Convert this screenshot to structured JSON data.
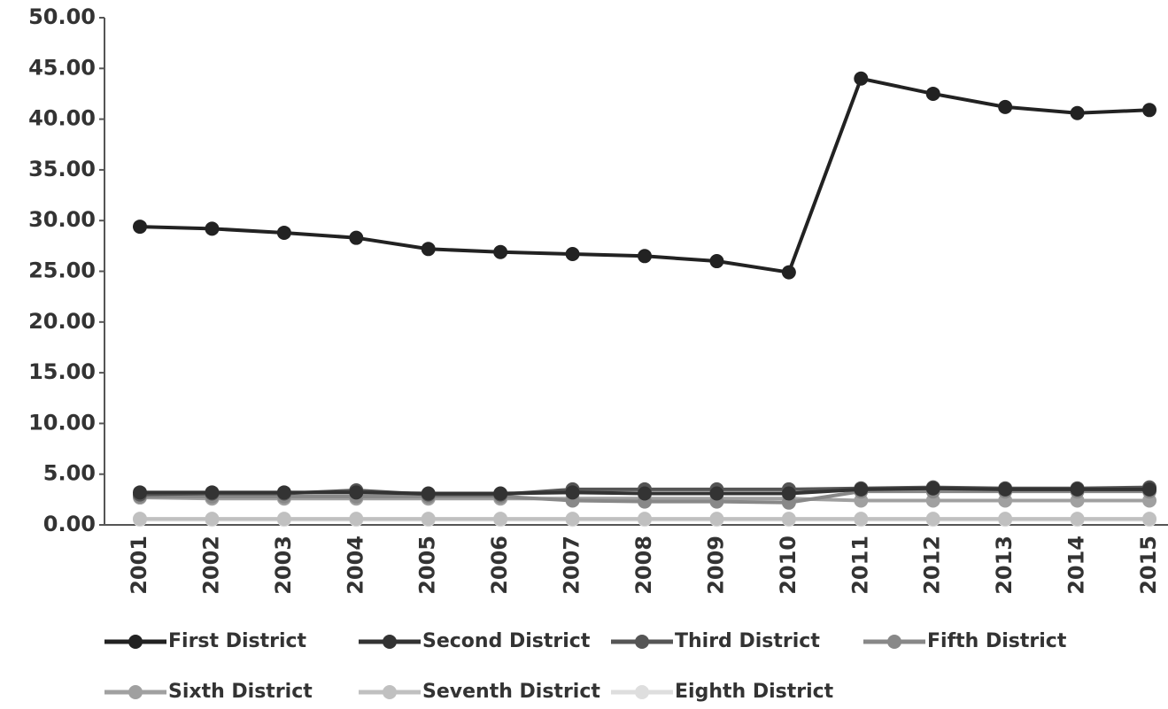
{
  "chart_data": {
    "type": "line",
    "categories": [
      "2001",
      "2002",
      "2003",
      "2004",
      "2005",
      "2006",
      "2007",
      "2008",
      "2009",
      "2010",
      "2011",
      "2012",
      "2013",
      "2014",
      "2015"
    ],
    "series": [
      {
        "name": "First District",
        "color": "#222222",
        "values": [
          29.4,
          29.2,
          28.8,
          28.3,
          27.2,
          26.9,
          26.7,
          26.5,
          26.0,
          24.9,
          44.0,
          42.5,
          41.2,
          40.6,
          40.9
        ]
      },
      {
        "name": "Second District",
        "color": "#333333",
        "values": [
          3.2,
          3.2,
          3.2,
          3.2,
          3.1,
          3.1,
          3.2,
          3.1,
          3.1,
          3.1,
          3.5,
          3.6,
          3.5,
          3.5,
          3.5
        ]
      },
      {
        "name": "Third District",
        "color": "#555555",
        "values": [
          3.0,
          3.1,
          3.1,
          3.4,
          3.0,
          3.0,
          3.5,
          3.5,
          3.5,
          3.5,
          3.6,
          3.7,
          3.6,
          3.6,
          3.7
        ]
      },
      {
        "name": "Fifth District",
        "color": "#888888",
        "values": [
          2.8,
          2.8,
          2.8,
          2.8,
          2.8,
          2.8,
          2.4,
          2.3,
          2.3,
          2.2,
          3.3,
          3.3,
          3.3,
          3.3,
          3.3
        ]
      },
      {
        "name": "Sixth District",
        "color": "#a0a0a0",
        "values": [
          2.7,
          2.6,
          2.6,
          2.6,
          2.6,
          2.6,
          2.6,
          2.6,
          2.6,
          2.6,
          2.4,
          2.4,
          2.4,
          2.4,
          2.4
        ]
      },
      {
        "name": "Seventh District",
        "color": "#c0c0c0",
        "values": [
          0.6,
          0.6,
          0.6,
          0.6,
          0.6,
          0.6,
          0.6,
          0.6,
          0.6,
          0.6,
          0.6,
          0.6,
          0.6,
          0.6,
          0.6
        ]
      },
      {
        "name": "Eighth District",
        "color": "#dedede",
        "values": [
          0.5,
          0.5,
          0.5,
          0.5,
          0.5,
          0.5,
          0.5,
          0.5,
          0.5,
          0.5,
          0.5,
          0.5,
          0.5,
          0.5,
          0.5
        ]
      }
    ],
    "ylim": [
      0,
      50
    ],
    "yticks": [
      {
        "value": 0,
        "label": "0.00"
      },
      {
        "value": 5,
        "label": "5.00"
      },
      {
        "value": 10,
        "label": "10.00"
      },
      {
        "value": 15,
        "label": "15.00"
      },
      {
        "value": 20,
        "label": "20.00"
      },
      {
        "value": 25,
        "label": "25.00"
      },
      {
        "value": 30,
        "label": "30.00"
      },
      {
        "value": 35,
        "label": "35.00"
      },
      {
        "value": 40,
        "label": "40.00"
      },
      {
        "value": 45,
        "label": "45.00"
      },
      {
        "value": 50,
        "label": "50.00"
      }
    ]
  }
}
